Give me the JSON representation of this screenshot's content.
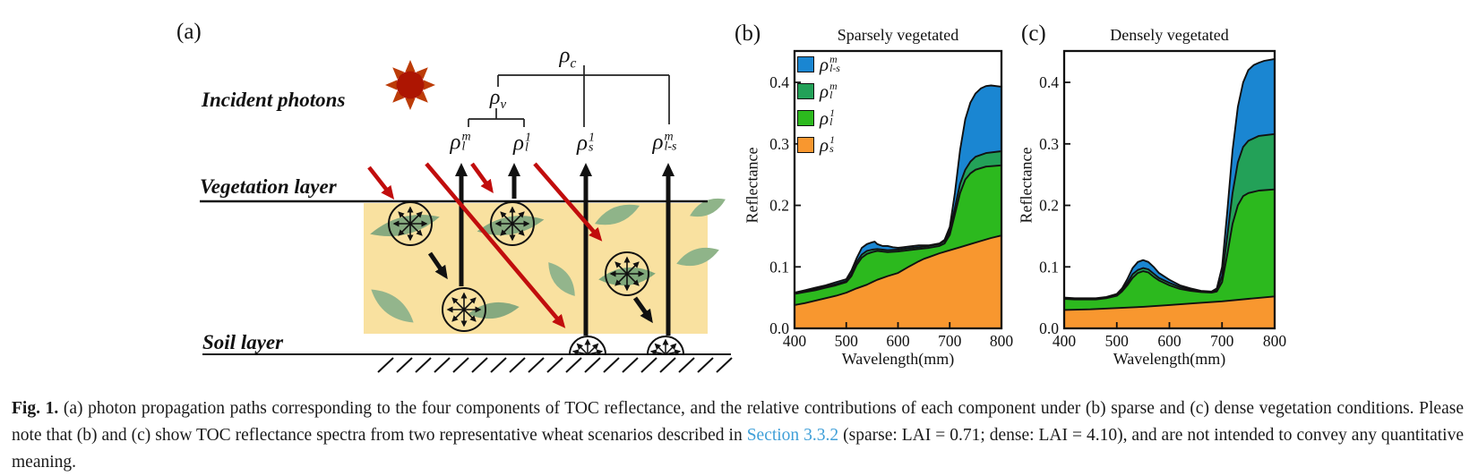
{
  "panel_a": {
    "label": "(a)",
    "incident_photons": "Incident photons",
    "vegetation_layer": "Vegetation layer",
    "soil_layer": "Soil layer",
    "rho_canopy": {
      "base": "ρ",
      "sub": "c"
    },
    "rho_veg": {
      "base": "ρ",
      "sub": "v"
    },
    "components": [
      {
        "base": "ρ",
        "sub": "l",
        "sup": "m"
      },
      {
        "base": "ρ",
        "sub": "l",
        "sup": "1"
      },
      {
        "base": "ρ",
        "sub": "s",
        "sup": "1"
      },
      {
        "base": "ρ",
        "sub": "l-s",
        "sup": "m"
      }
    ],
    "colors": {
      "canopy_fill": "#f9e1a0",
      "leaf_greens": [
        "#86a97f",
        "#8fb489",
        "#93b58c",
        "#7fa77a"
      ],
      "incident_arrow_red": "#c10d0d",
      "sun_core": "#ad1502",
      "sun_rays": "#bc3c08",
      "outline_black": "#111111"
    }
  },
  "panel_b_label": "(b)",
  "panel_c_label": "(c)",
  "legend": [
    {
      "color": "#1a86d2",
      "base": "ρ",
      "sub": "l-s",
      "sup": "m"
    },
    {
      "color": "#23a158",
      "base": "ρ",
      "sub": "l",
      "sup": "m"
    },
    {
      "color": "#2cb91e",
      "base": "ρ",
      "sub": "l",
      "sup": "1"
    },
    {
      "color": "#f8972f",
      "base": "ρ",
      "sub": "s",
      "sup": "1"
    }
  ],
  "chart_data": [
    {
      "type": "area",
      "stacked": true,
      "title": "Sparsely vegetated",
      "xlabel": "Wavelength(mm)",
      "ylabel": "Reflectance",
      "xlim": [
        400,
        800
      ],
      "ylim": [
        0,
        0.451
      ],
      "xticks": [
        400,
        500,
        600,
        700,
        800
      ],
      "xtick_labels": [
        "400",
        "500",
        "600",
        "700",
        "800"
      ],
      "yticks": [
        0.0,
        0.1,
        0.2,
        0.3,
        0.4
      ],
      "ytick_labels": [
        "0.0",
        "0.1",
        "0.2",
        "0.3",
        "0.4"
      ],
      "grid": false,
      "legend_position": "upper-left-inside",
      "note": "series values are cumulative stack tops (reflectance), painted largest-first",
      "series": [
        {
          "name": "rho_l-s_m",
          "color": "#1a86d2",
          "cum": [
            [
              400,
              0.058
            ],
            [
              420,
              0.062
            ],
            [
              440,
              0.066
            ],
            [
              460,
              0.07
            ],
            [
              480,
              0.075
            ],
            [
              500,
              0.08
            ],
            [
              510,
              0.094
            ],
            [
              520,
              0.114
            ],
            [
              530,
              0.131
            ],
            [
              540,
              0.137
            ],
            [
              550,
              0.14
            ],
            [
              555,
              0.141
            ],
            [
              560,
              0.137
            ],
            [
              570,
              0.134
            ],
            [
              580,
              0.134
            ],
            [
              590,
              0.132
            ],
            [
              600,
              0.131
            ],
            [
              610,
              0.132
            ],
            [
              620,
              0.133
            ],
            [
              640,
              0.135
            ],
            [
              660,
              0.135
            ],
            [
              680,
              0.138
            ],
            [
              690,
              0.144
            ],
            [
              700,
              0.165
            ],
            [
              710,
              0.22
            ],
            [
              720,
              0.29
            ],
            [
              730,
              0.34
            ],
            [
              740,
              0.367
            ],
            [
              750,
              0.382
            ],
            [
              760,
              0.39
            ],
            [
              770,
              0.394
            ],
            [
              780,
              0.395
            ],
            [
              800,
              0.393
            ]
          ]
        },
        {
          "name": "rho_l_m",
          "color": "#23a158",
          "cum": [
            [
              400,
              0.057
            ],
            [
              420,
              0.06
            ],
            [
              440,
              0.064
            ],
            [
              460,
              0.068
            ],
            [
              480,
              0.072
            ],
            [
              500,
              0.077
            ],
            [
              510,
              0.088
            ],
            [
              520,
              0.108
            ],
            [
              530,
              0.12
            ],
            [
              540,
              0.126
            ],
            [
              550,
              0.128
            ],
            [
              560,
              0.129
            ],
            [
              570,
              0.128
            ],
            [
              580,
              0.127
            ],
            [
              600,
              0.128
            ],
            [
              620,
              0.13
            ],
            [
              640,
              0.132
            ],
            [
              660,
              0.134
            ],
            [
              680,
              0.137
            ],
            [
              690,
              0.142
            ],
            [
              700,
              0.158
            ],
            [
              710,
              0.196
            ],
            [
              720,
              0.235
            ],
            [
              730,
              0.258
            ],
            [
              740,
              0.271
            ],
            [
              750,
              0.279
            ],
            [
              770,
              0.285
            ],
            [
              800,
              0.288
            ]
          ]
        },
        {
          "name": "rho_l_1",
          "color": "#2cb91e",
          "cum": [
            [
              400,
              0.056
            ],
            [
              420,
              0.059
            ],
            [
              440,
              0.062
            ],
            [
              460,
              0.066
            ],
            [
              480,
              0.07
            ],
            [
              500,
              0.075
            ],
            [
              510,
              0.085
            ],
            [
              520,
              0.103
            ],
            [
              530,
              0.115
            ],
            [
              540,
              0.121
            ],
            [
              550,
              0.124
            ],
            [
              560,
              0.126
            ],
            [
              580,
              0.124
            ],
            [
              600,
              0.125
            ],
            [
              620,
              0.127
            ],
            [
              640,
              0.129
            ],
            [
              660,
              0.131
            ],
            [
              680,
              0.134
            ],
            [
              690,
              0.138
            ],
            [
              700,
              0.152
            ],
            [
              710,
              0.185
            ],
            [
              720,
              0.22
            ],
            [
              730,
              0.242
            ],
            [
              740,
              0.252
            ],
            [
              750,
              0.258
            ],
            [
              770,
              0.263
            ],
            [
              800,
              0.265
            ]
          ]
        },
        {
          "name": "rho_s_1",
          "color": "#f8972f",
          "cum": [
            [
              400,
              0.038
            ],
            [
              420,
              0.041
            ],
            [
              440,
              0.045
            ],
            [
              460,
              0.049
            ],
            [
              480,
              0.053
            ],
            [
              500,
              0.058
            ],
            [
              520,
              0.065
            ],
            [
              540,
              0.071
            ],
            [
              550,
              0.075
            ],
            [
              560,
              0.079
            ],
            [
              580,
              0.085
            ],
            [
              600,
              0.09
            ],
            [
              620,
              0.1
            ],
            [
              640,
              0.109
            ],
            [
              650,
              0.113
            ],
            [
              660,
              0.116
            ],
            [
              680,
              0.122
            ],
            [
              700,
              0.127
            ],
            [
              720,
              0.132
            ],
            [
              740,
              0.137
            ],
            [
              760,
              0.142
            ],
            [
              780,
              0.147
            ],
            [
              800,
              0.151
            ]
          ]
        }
      ]
    },
    {
      "type": "area",
      "stacked": true,
      "title": "Densely vegetated",
      "xlabel": "Wavelength(mm)",
      "ylabel": "Reflectance",
      "xlim": [
        400,
        800
      ],
      "ylim": [
        0,
        0.451
      ],
      "xticks": [
        400,
        500,
        600,
        700,
        800
      ],
      "xtick_labels": [
        "400",
        "500",
        "600",
        "700",
        "800"
      ],
      "yticks": [
        0.0,
        0.1,
        0.2,
        0.3,
        0.4
      ],
      "ytick_labels": [
        "0.0",
        "0.1",
        "0.2",
        "0.3",
        "0.4"
      ],
      "grid": false,
      "legend_position": "none",
      "note": "series values are cumulative stack tops (reflectance), painted largest-first",
      "series": [
        {
          "name": "rho_l-s_m",
          "color": "#1a86d2",
          "cum": [
            [
              400,
              0.05
            ],
            [
              420,
              0.049
            ],
            [
              440,
              0.049
            ],
            [
              460,
              0.049
            ],
            [
              480,
              0.051
            ],
            [
              500,
              0.056
            ],
            [
              510,
              0.065
            ],
            [
              520,
              0.08
            ],
            [
              530,
              0.098
            ],
            [
              540,
              0.108
            ],
            [
              550,
              0.111
            ],
            [
              560,
              0.108
            ],
            [
              570,
              0.1
            ],
            [
              580,
              0.09
            ],
            [
              600,
              0.079
            ],
            [
              620,
              0.07
            ],
            [
              640,
              0.065
            ],
            [
              660,
              0.061
            ],
            [
              680,
              0.06
            ],
            [
              690,
              0.065
            ],
            [
              700,
              0.1
            ],
            [
              710,
              0.19
            ],
            [
              720,
              0.29
            ],
            [
              730,
              0.36
            ],
            [
              740,
              0.4
            ],
            [
              750,
              0.42
            ],
            [
              760,
              0.428
            ],
            [
              770,
              0.432
            ],
            [
              780,
              0.435
            ],
            [
              800,
              0.438
            ]
          ]
        },
        {
          "name": "rho_l_m",
          "color": "#23a158",
          "cum": [
            [
              400,
              0.049
            ],
            [
              420,
              0.048
            ],
            [
              440,
              0.048
            ],
            [
              460,
              0.048
            ],
            [
              480,
              0.05
            ],
            [
              500,
              0.054
            ],
            [
              510,
              0.062
            ],
            [
              520,
              0.074
            ],
            [
              530,
              0.088
            ],
            [
              540,
              0.095
            ],
            [
              550,
              0.098
            ],
            [
              560,
              0.096
            ],
            [
              570,
              0.089
            ],
            [
              580,
              0.082
            ],
            [
              600,
              0.074
            ],
            [
              620,
              0.067
            ],
            [
              640,
              0.063
            ],
            [
              660,
              0.06
            ],
            [
              680,
              0.059
            ],
            [
              690,
              0.062
            ],
            [
              700,
              0.085
            ],
            [
              710,
              0.15
            ],
            [
              720,
              0.22
            ],
            [
              730,
              0.27
            ],
            [
              740,
              0.295
            ],
            [
              750,
              0.305
            ],
            [
              770,
              0.313
            ],
            [
              800,
              0.316
            ]
          ]
        },
        {
          "name": "rho_l_1",
          "color": "#2cb91e",
          "cum": [
            [
              400,
              0.048
            ],
            [
              420,
              0.047
            ],
            [
              440,
              0.047
            ],
            [
              460,
              0.047
            ],
            [
              480,
              0.049
            ],
            [
              500,
              0.053
            ],
            [
              510,
              0.06
            ],
            [
              520,
              0.07
            ],
            [
              530,
              0.082
            ],
            [
              540,
              0.09
            ],
            [
              550,
              0.093
            ],
            [
              560,
              0.091
            ],
            [
              570,
              0.084
            ],
            [
              580,
              0.078
            ],
            [
              600,
              0.07
            ],
            [
              620,
              0.064
            ],
            [
              640,
              0.061
            ],
            [
              660,
              0.059
            ],
            [
              680,
              0.058
            ],
            [
              690,
              0.06
            ],
            [
              700,
              0.075
            ],
            [
              710,
              0.12
            ],
            [
              720,
              0.17
            ],
            [
              730,
              0.2
            ],
            [
              740,
              0.215
            ],
            [
              750,
              0.22
            ],
            [
              770,
              0.224
            ],
            [
              800,
              0.226
            ]
          ]
        },
        {
          "name": "rho_s_1",
          "color": "#f8972f",
          "cum": [
            [
              400,
              0.03
            ],
            [
              450,
              0.031
            ],
            [
              500,
              0.033
            ],
            [
              550,
              0.035
            ],
            [
              600,
              0.038
            ],
            [
              650,
              0.041
            ],
            [
              700,
              0.044
            ],
            [
              750,
              0.048
            ],
            [
              800,
              0.052
            ]
          ]
        }
      ]
    }
  ],
  "caption": {
    "fig_label": "Fig. 1.",
    "text_before_link": " (a) photon propagation paths corresponding to the four components of TOC reflectance, and the relative contributions of each component under (b) sparse and (c) dense vegetation conditions. Please note that (b) and (c) show TOC reflectance spectra from two representative wheat scenarios described in ",
    "link_text": "Section 3.3.2",
    "text_after_link": " (sparse: LAI = 0.71; dense: LAI = 4.10), and are not intended to convey any quantitative meaning.",
    "link_color": "#3f9fd8"
  }
}
